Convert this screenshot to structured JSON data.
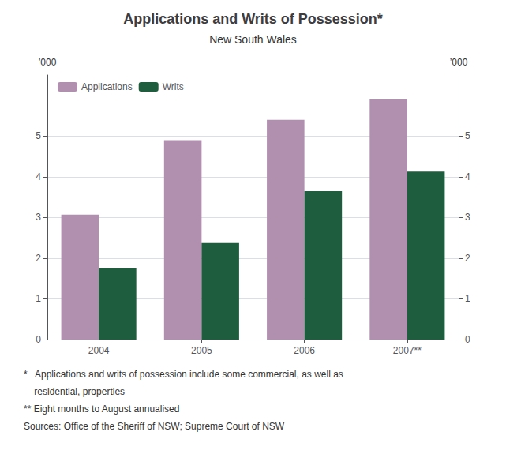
{
  "chart_data": {
    "type": "bar",
    "title": "Applications and Writs of Possession*",
    "subtitle": "New South Wales",
    "categories": [
      "2004",
      "2005",
      "2006",
      "2007**"
    ],
    "series": [
      {
        "name": "Applications",
        "color": "#b08faf",
        "values": [
          3.07,
          4.9,
          5.4,
          5.9
        ]
      },
      {
        "name": "Writs",
        "color": "#1e5e3e",
        "values": [
          1.75,
          2.37,
          3.65,
          4.13
        ]
      }
    ],
    "ylabel": "’000",
    "y2label": "’000",
    "ylim": [
      0,
      6.5
    ],
    "yticks": [
      0,
      1,
      2,
      3,
      4,
      5
    ],
    "y2lim": [
      0,
      6.5
    ],
    "y2ticks": [
      0,
      1,
      2,
      3,
      4,
      5
    ],
    "grid": true,
    "legend": "upper left",
    "annotations": [
      "*   Applications and writs of possession include some commercial, as well as",
      "    residential, properties",
      "** Eight months to August annualised",
      "Sources: Office of the Sheriff of NSW; Supreme Court of NSW"
    ]
  }
}
